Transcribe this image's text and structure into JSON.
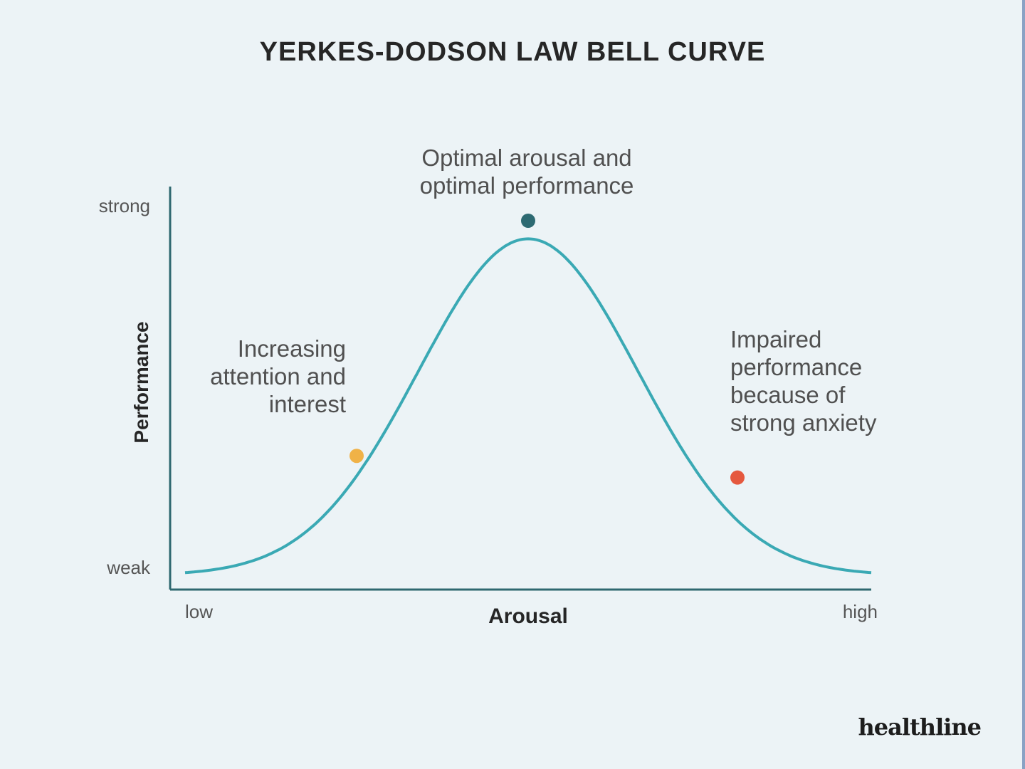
{
  "chart_data": {
    "type": "line",
    "title": "YERKES-DODSON LAW BELL CURVE",
    "xlabel": "Arousal",
    "ylabel": "Performance",
    "x_tick_labels": [
      "low",
      "high"
    ],
    "y_tick_labels": [
      "weak",
      "strong"
    ],
    "xlim": [
      0,
      1
    ],
    "ylim": [
      0,
      1
    ],
    "curve": {
      "peak_x": 0.5,
      "peak_y": 0.95,
      "spread": 0.16,
      "base_y": 0.02
    },
    "points": [
      {
        "name": "increasing-attention-point",
        "x": 0.25,
        "y": 0.35,
        "color": "#f0b247"
      },
      {
        "name": "optimal-point",
        "x": 0.5,
        "y": 1.0,
        "color": "#2d6a72"
      },
      {
        "name": "impaired-performance-point",
        "x": 0.805,
        "y": 0.29,
        "color": "#e5583e"
      }
    ],
    "annotations": {
      "peak": [
        "Optimal arousal and",
        "optimal performance"
      ],
      "left": [
        "Increasing",
        "attention and",
        "interest"
      ],
      "right": [
        "Impaired",
        "performance",
        "because of",
        "strong anxiety"
      ]
    },
    "curve_color": "#3aa9b4",
    "grid": false,
    "legend": "none"
  },
  "brand": "healthline"
}
